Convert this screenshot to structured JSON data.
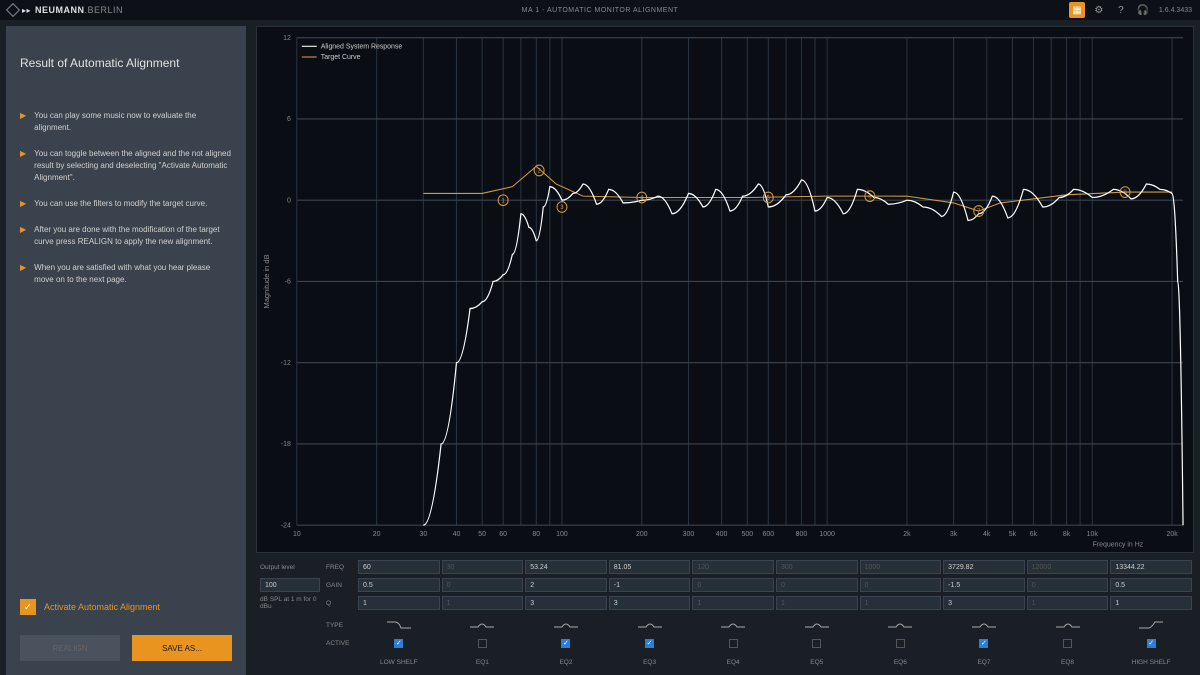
{
  "header": {
    "brand_strong": "NEUMANN",
    "brand_light": ".BERLIN",
    "title": "MA 1 - AUTOMATIC MONITOR ALIGNMENT",
    "version": "1.6.4.3433"
  },
  "sidebar": {
    "title": "Result of Automatic Alignment",
    "tips": [
      "You can play some music now to evaluate the alignment.",
      "You can toggle between the aligned and the not aligned result by selecting and deselecting \"Activate Automatic Alignment\".",
      "You can use the filters to modify the target curve.",
      "After you are done with the modification of the target curve press REALIGN to apply the new alignment.",
      "When you are satisfied with what you hear please move on to the next page."
    ],
    "activate_label": "Activate Automatic Alignment",
    "activate_checked": true,
    "realign_label": "REALIGN",
    "save_label": "SAVE AS..."
  },
  "chart": {
    "legend": [
      "Aligned System Response",
      "Target Curve"
    ],
    "y_label": "Magnitude in dB",
    "x_label": "Frequency in Hz",
    "y_ticks": [
      12,
      6,
      0,
      -6,
      -12,
      -18,
      -24
    ],
    "x_ticks": [
      10,
      20,
      30,
      40,
      50,
      60,
      80,
      100,
      200,
      300,
      400,
      500,
      600,
      800,
      1000,
      "2k",
      "3k",
      "4k",
      "5k",
      "6k",
      "8k",
      "10k",
      "20k"
    ],
    "x_tick_values": [
      10,
      20,
      30,
      40,
      50,
      60,
      80,
      100,
      200,
      300,
      400,
      500,
      600,
      800,
      1000,
      2000,
      3000,
      4000,
      5000,
      6000,
      8000,
      10000,
      20000
    ],
    "ylim": [
      -24,
      12
    ],
    "xlim": [
      10,
      22000
    ],
    "background": "#0a0e14",
    "grid_color": "#2a3440",
    "aligned_color": "#ffffff",
    "target_color": "#d19a3e",
    "markers": [
      {
        "n": 1,
        "freq": 60,
        "db": 0
      },
      {
        "n": 2,
        "freq": 82,
        "db": 2.2
      },
      {
        "n": 3,
        "freq": 100,
        "db": -0.5
      },
      {
        "n": 4,
        "freq": 200,
        "db": 0.2
      },
      {
        "n": 5,
        "freq": 600,
        "db": 0.2
      },
      {
        "n": 6,
        "freq": 1450,
        "db": 0.3
      },
      {
        "n": 7,
        "freq": 3730,
        "db": -0.8
      },
      {
        "n": 8,
        "freq": 13300,
        "db": 0.6
      }
    ],
    "target_points": [
      {
        "f": 30,
        "db": 0.5
      },
      {
        "f": 50,
        "db": 0.5
      },
      {
        "f": 65,
        "db": 1.0
      },
      {
        "f": 80,
        "db": 2.5
      },
      {
        "f": 95,
        "db": 1.2
      },
      {
        "f": 120,
        "db": 0.3
      },
      {
        "f": 200,
        "db": 0.2
      },
      {
        "f": 500,
        "db": 0.2
      },
      {
        "f": 1000,
        "db": 0.3
      },
      {
        "f": 2000,
        "db": 0.3
      },
      {
        "f": 3000,
        "db": -0.2
      },
      {
        "f": 3730,
        "db": -0.8
      },
      {
        "f": 4500,
        "db": -0.2
      },
      {
        "f": 8000,
        "db": 0.4
      },
      {
        "f": 13300,
        "db": 0.6
      },
      {
        "f": 20000,
        "db": 0.6
      }
    ],
    "aligned_points": [
      {
        "f": 30,
        "db": -24
      },
      {
        "f": 35,
        "db": -18
      },
      {
        "f": 40,
        "db": -12
      },
      {
        "f": 45,
        "db": -8
      },
      {
        "f": 50,
        "db": -7.5
      },
      {
        "f": 55,
        "db": -6
      },
      {
        "f": 60,
        "db": -5.5
      },
      {
        "f": 65,
        "db": -4
      },
      {
        "f": 70,
        "db": -1
      },
      {
        "f": 75,
        "db": -2
      },
      {
        "f": 80,
        "db": -3
      },
      {
        "f": 85,
        "db": -0.5
      },
      {
        "f": 90,
        "db": 1
      },
      {
        "f": 100,
        "db": 0
      },
      {
        "f": 110,
        "db": 0.5
      },
      {
        "f": 120,
        "db": 1.2
      },
      {
        "f": 135,
        "db": -0.3
      },
      {
        "f": 150,
        "db": 0.8
      },
      {
        "f": 170,
        "db": -0.2
      },
      {
        "f": 200,
        "db": 0
      },
      {
        "f": 230,
        "db": 0.3
      },
      {
        "f": 260,
        "db": -1
      },
      {
        "f": 300,
        "db": 0.5
      },
      {
        "f": 340,
        "db": -0.5
      },
      {
        "f": 380,
        "db": 0.8
      },
      {
        "f": 430,
        "db": -0.8
      },
      {
        "f": 480,
        "db": 0.3
      },
      {
        "f": 550,
        "db": 1.2
      },
      {
        "f": 600,
        "db": -0.5
      },
      {
        "f": 700,
        "db": 0.4
      },
      {
        "f": 800,
        "db": 1.5
      },
      {
        "f": 900,
        "db": -0.8
      },
      {
        "f": 1000,
        "db": 0.2
      },
      {
        "f": 1150,
        "db": -1
      },
      {
        "f": 1300,
        "db": 0.8
      },
      {
        "f": 1500,
        "db": 0.2
      },
      {
        "f": 1700,
        "db": -0.3
      },
      {
        "f": 2000,
        "db": 0
      },
      {
        "f": 2300,
        "db": -0.5
      },
      {
        "f": 2700,
        "db": -1.2
      },
      {
        "f": 3000,
        "db": 0.6
      },
      {
        "f": 3400,
        "db": -1.5
      },
      {
        "f": 3730,
        "db": -1
      },
      {
        "f": 4200,
        "db": 0.3
      },
      {
        "f": 4800,
        "db": -1.3
      },
      {
        "f": 5500,
        "db": 0.8
      },
      {
        "f": 6500,
        "db": -0.5
      },
      {
        "f": 7500,
        "db": 0.2
      },
      {
        "f": 8500,
        "db": 0.8
      },
      {
        "f": 10000,
        "db": 0.2
      },
      {
        "f": 12000,
        "db": 0.8
      },
      {
        "f": 14000,
        "db": 0.1
      },
      {
        "f": 16000,
        "db": 1.2
      },
      {
        "f": 18000,
        "db": 0.8
      },
      {
        "f": 20000,
        "db": 0.5
      },
      {
        "f": 21000,
        "db": -6
      },
      {
        "f": 22000,
        "db": -24
      }
    ]
  },
  "controls": {
    "output_label": "Output level",
    "output_value": "100",
    "output_note": "dB SPL at 1 m for 0 dBu",
    "row_labels": {
      "freq": "FREQ",
      "gain": "GAIN",
      "q": "Q",
      "type": "TYPE",
      "active": "ACTIVE"
    },
    "bands": [
      {
        "name": "LOW SHELF",
        "freq": "60",
        "gain": "0.5",
        "q": "1",
        "type": "lowshelf",
        "active": true,
        "enabled": true
      },
      {
        "name": "EQ1",
        "freq": "30",
        "gain": "0",
        "q": "1",
        "type": "bell",
        "active": false,
        "enabled": false
      },
      {
        "name": "EQ2",
        "freq": "53.24",
        "gain": "2",
        "q": "3",
        "type": "bell",
        "active": true,
        "enabled": true
      },
      {
        "name": "EQ3",
        "freq": "81.05",
        "gain": "-1",
        "q": "3",
        "type": "bell",
        "active": true,
        "enabled": true
      },
      {
        "name": "EQ4",
        "freq": "120",
        "gain": "0",
        "q": "1",
        "type": "bell",
        "active": false,
        "enabled": false
      },
      {
        "name": "EQ5",
        "freq": "300",
        "gain": "0",
        "q": "1",
        "type": "bell",
        "active": false,
        "enabled": false
      },
      {
        "name": "EQ6",
        "freq": "1000",
        "gain": "0",
        "q": "1",
        "type": "bell",
        "active": false,
        "enabled": false
      },
      {
        "name": "EQ7",
        "freq": "3729.82",
        "gain": "-1.5",
        "q": "3",
        "type": "bell",
        "active": true,
        "enabled": true
      },
      {
        "name": "EQ8",
        "freq": "12000",
        "gain": "0",
        "q": "1",
        "type": "bell",
        "active": false,
        "enabled": false
      },
      {
        "name": "HIGH SHELF",
        "freq": "13344.22",
        "gain": "0.5",
        "q": "1",
        "type": "highshelf",
        "active": true,
        "enabled": true
      }
    ]
  }
}
